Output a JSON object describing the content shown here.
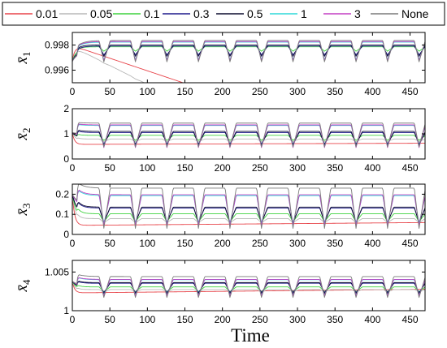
{
  "chart_data": {
    "type": "line",
    "xlabel": "Time",
    "xlim": [
      0,
      470
    ],
    "xticks": [
      0,
      50,
      100,
      150,
      200,
      250,
      300,
      350,
      400,
      450
    ],
    "legend": {
      "placement": "top",
      "entries": [
        {
          "name": "0.01",
          "color": "#e8444a"
        },
        {
          "name": "0.05",
          "color": "#b8b8b8"
        },
        {
          "name": "0.1",
          "color": "#3fd23f"
        },
        {
          "name": "0.3",
          "color": "#1e1a8c"
        },
        {
          "name": "0.5",
          "color": "#0b0b2e"
        },
        {
          "name": "1",
          "color": "#2fd9d9"
        },
        {
          "name": "3",
          "color": "#c43ec4"
        },
        {
          "name": "None",
          "color": "#7a7a7a"
        }
      ]
    },
    "panels": [
      {
        "ylabel_base": "x̄",
        "ylabel_sub": "1",
        "ylim": [
          0.995,
          0.999
        ],
        "yticks": [
          0.996,
          0.998
        ],
        "ytick_labels": [
          "0.996",
          "0.998"
        ],
        "series": [
          {
            "name": "0.01",
            "start": 0.9967,
            "level": 0.99795,
            "tau": 3,
            "amp": 0,
            "drift": -2e-05
          },
          {
            "name": "0.05",
            "start": 0.9967,
            "level": 0.99785,
            "tau": 4,
            "amp": 5e-05,
            "drift": -3e-05
          },
          {
            "name": "0.1",
            "start": 0.9967,
            "level": 0.9977,
            "tau": 5,
            "amp": 0.00035,
            "drift": 0
          },
          {
            "name": "0.3",
            "start": 0.9967,
            "level": 0.9976,
            "tau": 6,
            "amp": 0.0007,
            "drift": 0
          },
          {
            "name": "0.5",
            "start": 0.9967,
            "level": 0.9976,
            "tau": 6,
            "amp": 0.0009,
            "drift": 0
          },
          {
            "name": "1",
            "start": 0.9967,
            "level": 0.9976,
            "tau": 8,
            "amp": 0.0014,
            "drift": 0
          },
          {
            "name": "3",
            "start": 0.9967,
            "level": 0.9976,
            "tau": 8,
            "amp": 0.0015,
            "drift": 0
          },
          {
            "name": "None",
            "start": 0.9967,
            "level": 0.9976,
            "tau": 9,
            "amp": 0.0017,
            "drift": 0
          }
        ]
      },
      {
        "ylabel_base": "x̄",
        "ylabel_sub": "2",
        "ylim": [
          0,
          2
        ],
        "yticks": [
          0,
          1,
          2
        ],
        "ytick_labels": [
          "0",
          "1",
          "2"
        ],
        "series": [
          {
            "name": "0.01",
            "start": 1.05,
            "level": 0.58,
            "tau": 3,
            "amp": 0.0,
            "drift": 0.0001
          },
          {
            "name": "0.05",
            "start": 1.05,
            "level": 0.75,
            "tau": 4,
            "amp": 0.1,
            "drift": 0
          },
          {
            "name": "0.1",
            "start": 1.05,
            "level": 0.85,
            "tau": 5,
            "amp": 0.2,
            "drift": 0
          },
          {
            "name": "0.3",
            "start": 1.05,
            "level": 0.85,
            "tau": 6,
            "amp": 0.45,
            "drift": 0
          },
          {
            "name": "0.5",
            "start": 1.05,
            "level": 0.85,
            "tau": 6,
            "amp": 0.55,
            "drift": 0
          },
          {
            "name": "1",
            "start": 1.05,
            "level": 0.95,
            "tau": 8,
            "amp": 0.85,
            "drift": 0
          },
          {
            "name": "3",
            "start": 1.05,
            "level": 0.95,
            "tau": 8,
            "amp": 0.9,
            "drift": 0
          },
          {
            "name": "None",
            "start": 1.05,
            "level": 1.0,
            "tau": 9,
            "amp": 0.95,
            "drift": 0
          }
        ]
      },
      {
        "ylabel_base": "x̄",
        "ylabel_sub": "3",
        "ylim": [
          0,
          0.25
        ],
        "yticks": [
          0,
          0.1,
          0.2
        ],
        "ytick_labels": [
          "0",
          "0.1",
          "0.2"
        ],
        "series": [
          {
            "name": "0.01",
            "start": 0.2,
            "level": 0.045,
            "tau": 3,
            "amp": 0.0,
            "drift": 3e-05
          },
          {
            "name": "0.05",
            "start": 0.2,
            "level": 0.07,
            "tau": 4,
            "amp": 0.02,
            "drift": 0
          },
          {
            "name": "0.1",
            "start": 0.2,
            "level": 0.085,
            "tau": 5,
            "amp": 0.04,
            "drift": 0
          },
          {
            "name": "0.3",
            "start": 0.2,
            "level": 0.1,
            "tau": 6,
            "amp": 0.07,
            "drift": 0
          },
          {
            "name": "0.5",
            "start": 0.2,
            "level": 0.1,
            "tau": 6,
            "amp": 0.08,
            "drift": 0
          },
          {
            "name": "1",
            "start": 0.2,
            "level": 0.13,
            "tau": 8,
            "amp": 0.14,
            "drift": 0
          },
          {
            "name": "3",
            "start": 0.2,
            "level": 0.13,
            "tau": 8,
            "amp": 0.15,
            "drift": 0
          },
          {
            "name": "None",
            "start": 0.2,
            "level": 0.14,
            "tau": 9,
            "amp": 0.2,
            "drift": 0
          }
        ]
      },
      {
        "ylabel_base": "x̄",
        "ylabel_sub": "4",
        "ylim": [
          1,
          1.0065
        ],
        "yticks": [
          1,
          1.005
        ],
        "ytick_labels": [
          "1",
          "1.005"
        ],
        "series": [
          {
            "name": "0.01",
            "start": 1.0038,
            "level": 1.0023,
            "tau": 3,
            "amp": 0.0,
            "drift": 1e-06
          },
          {
            "name": "0.05",
            "start": 1.0038,
            "level": 1.0026,
            "tau": 4,
            "amp": 0.0003,
            "drift": 0
          },
          {
            "name": "0.1",
            "start": 1.0038,
            "level": 1.0028,
            "tau": 5,
            "amp": 0.0006,
            "drift": 0
          },
          {
            "name": "0.3",
            "start": 1.0038,
            "level": 1.003,
            "tau": 6,
            "amp": 0.0012,
            "drift": 0
          },
          {
            "name": "0.5",
            "start": 1.0038,
            "level": 1.003,
            "tau": 6,
            "amp": 0.0014,
            "drift": 0
          },
          {
            "name": "1",
            "start": 1.0038,
            "level": 1.0031,
            "tau": 8,
            "amp": 0.002,
            "drift": 0
          },
          {
            "name": "3",
            "start": 1.0038,
            "level": 1.0031,
            "tau": 8,
            "amp": 0.0021,
            "drift": 0
          },
          {
            "name": "None",
            "start": 1.0038,
            "level": 1.0032,
            "tau": 9,
            "amp": 0.0027,
            "drift": 0
          }
        ]
      }
    ],
    "period": 42,
    "grid": false
  }
}
